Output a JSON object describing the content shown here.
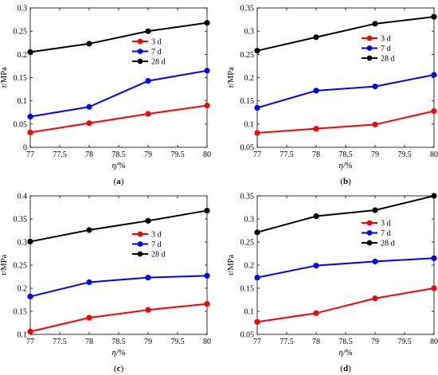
{
  "chart_data": [
    {
      "panel_label": "a",
      "type": "line",
      "x": [
        77,
        78,
        79,
        80
      ],
      "xlabel_symbol": "η",
      "xlabel_unit": "/%",
      "ylabel_symbol": "τ",
      "ylabel_unit": "/MPa",
      "xlim": [
        77,
        80
      ],
      "ylim": [
        0,
        0.3
      ],
      "xticks": [
        "77",
        "77.5",
        "78",
        "78.5",
        "79",
        "79.5",
        "80"
      ],
      "yticks": [
        "0",
        "0.05",
        "0.1",
        "0.15",
        "0.2",
        "0.25",
        "0.3"
      ],
      "grid": false,
      "legend_position": "center-right",
      "series": [
        {
          "name": "3 d",
          "color": "#ff0000",
          "values": [
            0.032,
            0.052,
            0.072,
            0.09
          ]
        },
        {
          "name": "7 d",
          "color": "#0000ff",
          "values": [
            0.066,
            0.087,
            0.143,
            0.165
          ]
        },
        {
          "name": "28 d",
          "color": "#000000",
          "values": [
            0.205,
            0.223,
            0.25,
            0.268
          ]
        }
      ]
    },
    {
      "panel_label": "b",
      "type": "line",
      "x": [
        77,
        78,
        79,
        80
      ],
      "xlabel_symbol": "η",
      "xlabel_unit": "/%",
      "ylabel_symbol": "τ",
      "ylabel_unit": "/MPa",
      "xlim": [
        77,
        80
      ],
      "ylim": [
        0.05,
        0.35
      ],
      "xticks": [
        "77",
        "77.5",
        "78",
        "78.5",
        "79",
        "79.5",
        "80"
      ],
      "yticks": [
        "0.05",
        "0.1",
        "0.15",
        "0.2",
        "0.25",
        "0.3",
        "0.35"
      ],
      "grid": false,
      "legend_position": "top-right",
      "series": [
        {
          "name": "3 d",
          "color": "#ff0000",
          "values": [
            0.081,
            0.09,
            0.099,
            0.128
          ]
        },
        {
          "name": "7 d",
          "color": "#0000ff",
          "values": [
            0.135,
            0.172,
            0.181,
            0.206
          ]
        },
        {
          "name": "28 d",
          "color": "#000000",
          "values": [
            0.258,
            0.287,
            0.316,
            0.331
          ]
        }
      ]
    },
    {
      "panel_label": "c",
      "type": "line",
      "x": [
        77,
        78,
        79,
        80
      ],
      "xlabel_symbol": "η",
      "xlabel_unit": "/%",
      "ylabel_symbol": "τ",
      "ylabel_unit": "/MPa",
      "xlim": [
        77,
        80
      ],
      "ylim": [
        0.1,
        0.4
      ],
      "xticks": [
        "77",
        "77.5",
        "78",
        "78.5",
        "79",
        "79.5",
        "80"
      ],
      "yticks": [
        "0.1",
        "0.15",
        "0.2",
        "0.25",
        "0.3",
        "0.35",
        "0.4"
      ],
      "grid": false,
      "legend_position": "center-right",
      "series": [
        {
          "name": "3 d",
          "color": "#ff0000",
          "values": [
            0.106,
            0.136,
            0.153,
            0.166
          ]
        },
        {
          "name": "7 d",
          "color": "#0000ff",
          "values": [
            0.182,
            0.213,
            0.223,
            0.227
          ]
        },
        {
          "name": "28 d",
          "color": "#000000",
          "values": [
            0.301,
            0.326,
            0.346,
            0.368
          ]
        }
      ]
    },
    {
      "panel_label": "d",
      "type": "line",
      "x": [
        77,
        78,
        79,
        80
      ],
      "xlabel_symbol": "η",
      "xlabel_unit": "/%",
      "ylabel_symbol": "τ",
      "ylabel_unit": "/MPa",
      "xlim": [
        77,
        80
      ],
      "ylim": [
        0.05,
        0.35
      ],
      "xticks": [
        "77",
        "77.5",
        "78",
        "78.5",
        "79",
        "79.5",
        "80"
      ],
      "yticks": [
        "0.05",
        "0.1",
        "0.15",
        "0.2",
        "0.25",
        "0.3",
        "0.35"
      ],
      "grid": false,
      "legend_position": "center-right",
      "series": [
        {
          "name": "3 d",
          "color": "#ff0000",
          "values": [
            0.077,
            0.096,
            0.128,
            0.15
          ]
        },
        {
          "name": "7 d",
          "color": "#0000ff",
          "values": [
            0.173,
            0.199,
            0.208,
            0.215
          ]
        },
        {
          "name": "28 d",
          "color": "#000000",
          "values": [
            0.271,
            0.306,
            0.319,
            0.35
          ]
        }
      ]
    }
  ]
}
